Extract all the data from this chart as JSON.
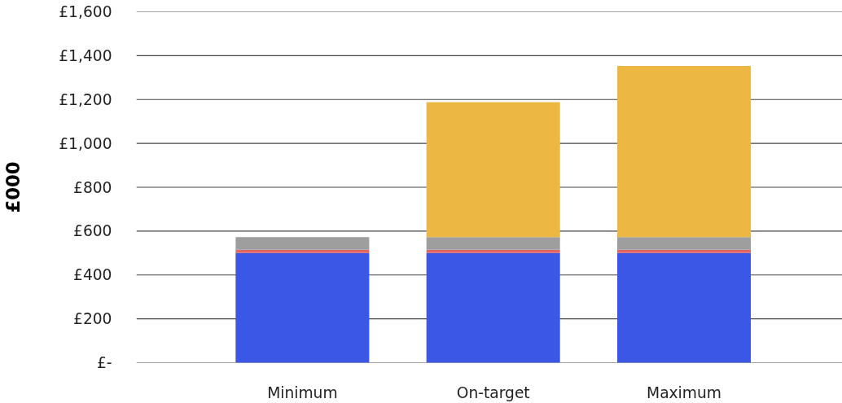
{
  "chart_data": {
    "type": "bar",
    "stacked": true,
    "ylabel": "£000",
    "categories": [
      "Minimum",
      "On-target",
      "Maximum"
    ],
    "series": [
      {
        "color": "#3b57e6",
        "values": [
          500,
          500,
          500
        ]
      },
      {
        "color": "#e06666",
        "values": [
          15,
          15,
          15
        ]
      },
      {
        "color": "#9e9e9e",
        "values": [
          58,
          58,
          58
        ]
      },
      {
        "color": "#edb744",
        "values": [
          0,
          615,
          780
        ]
      }
    ],
    "ylim": [
      0,
      1600
    ],
    "yticks": [
      {
        "value": 0,
        "label": "£-"
      },
      {
        "value": 200,
        "label": "£200"
      },
      {
        "value": 400,
        "label": "£400"
      },
      {
        "value": 600,
        "label": "£600"
      },
      {
        "value": 800,
        "label": "£800"
      },
      {
        "value": 1000,
        "label": "£1,000"
      },
      {
        "value": 1200,
        "label": "£1,200"
      },
      {
        "value": 1400,
        "label": "£1,400"
      },
      {
        "value": 1600,
        "label": "£1,600"
      }
    ],
    "grid": "y"
  }
}
